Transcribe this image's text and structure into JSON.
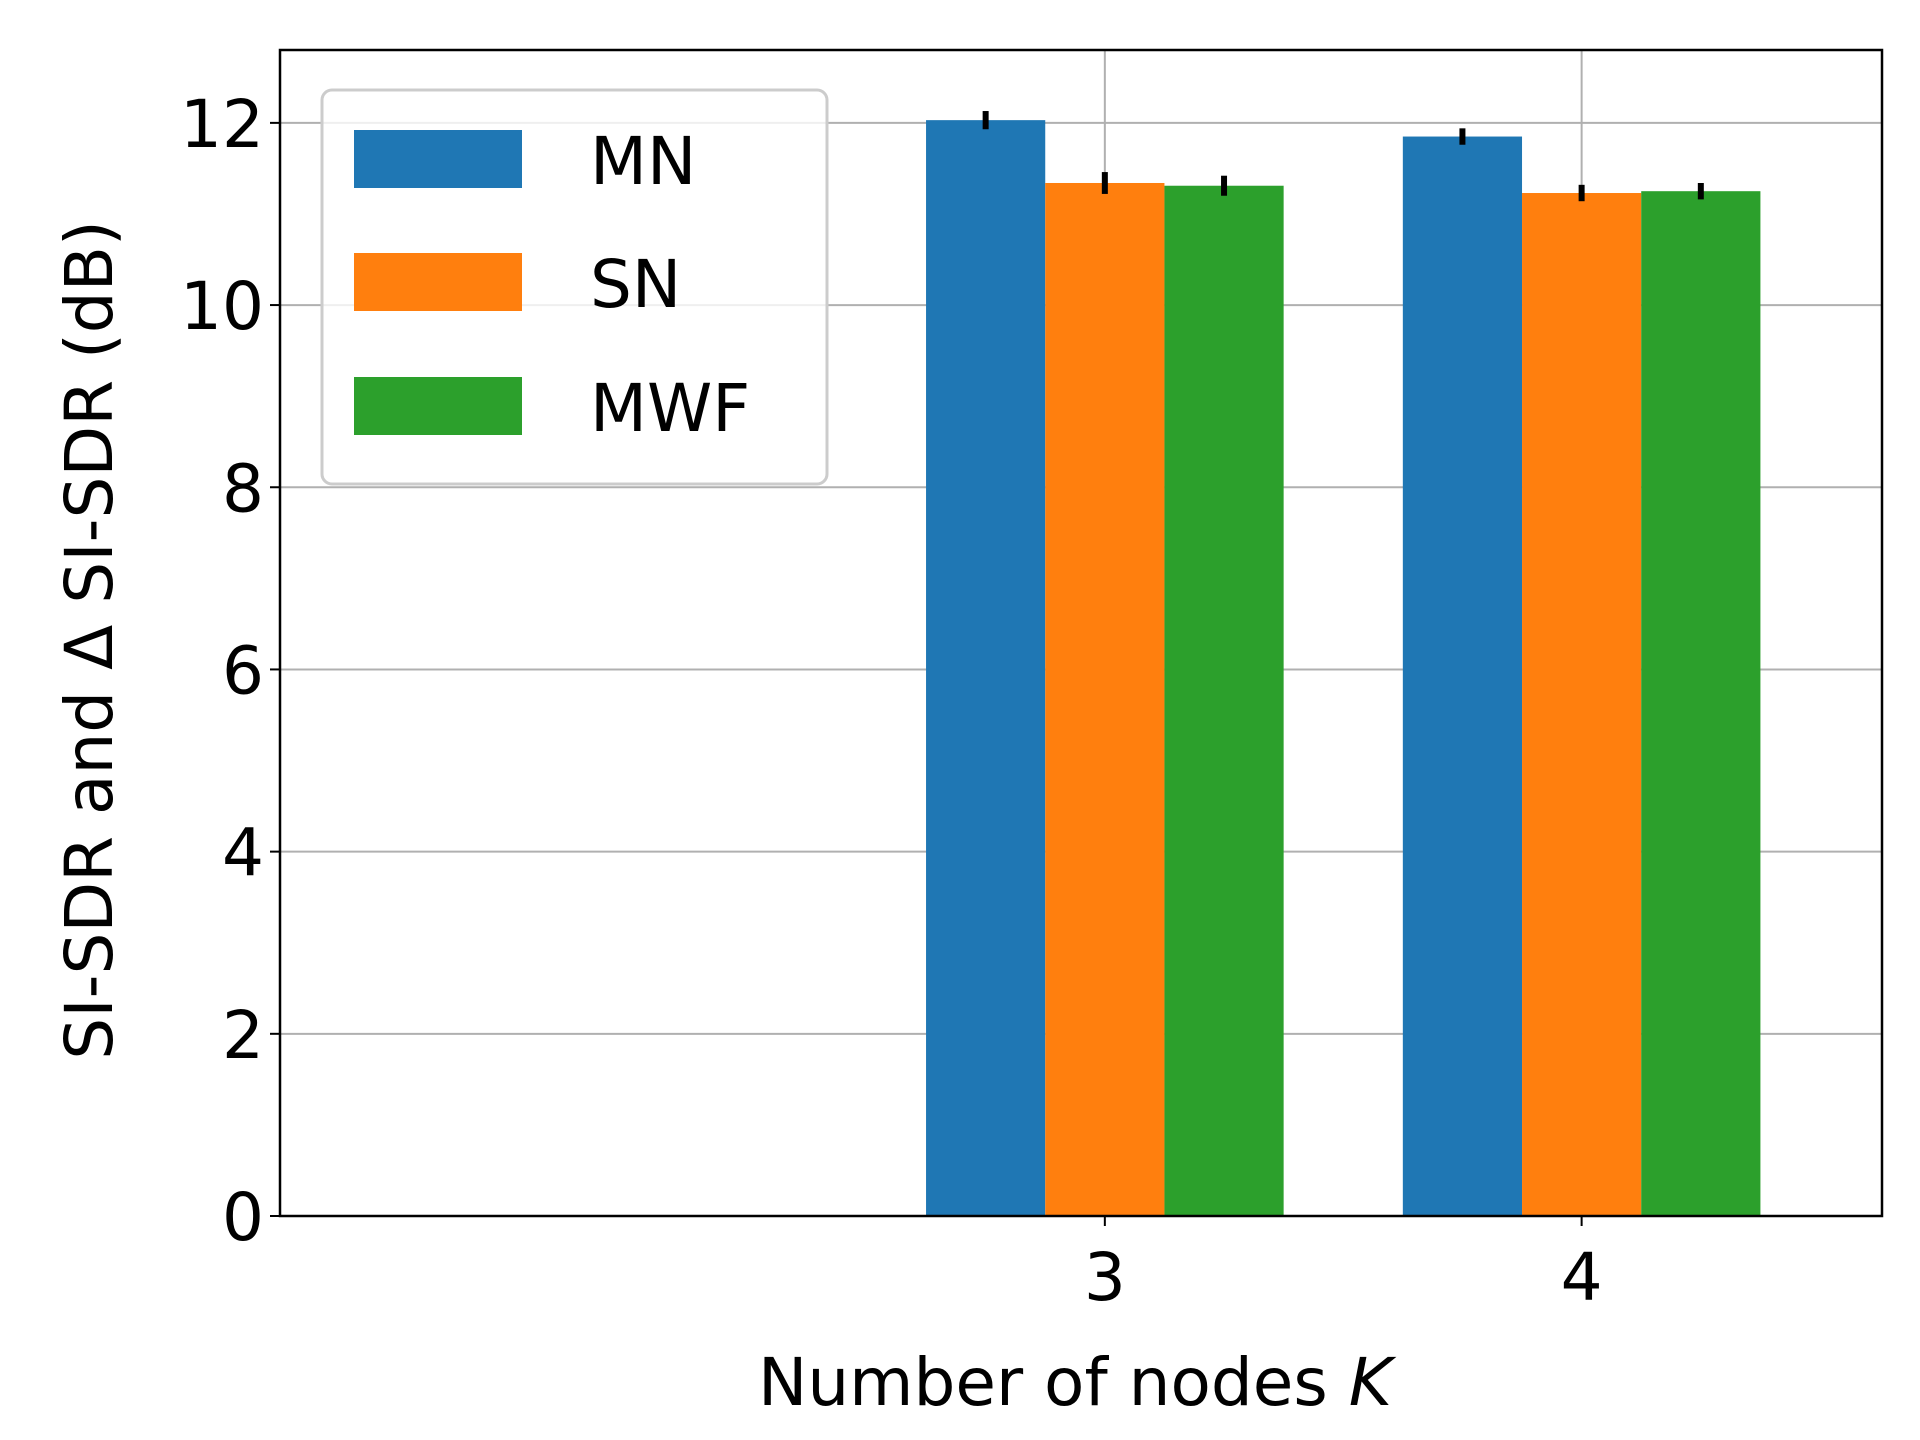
{
  "chart_data": {
    "type": "bar",
    "categories": [
      "3",
      "4"
    ],
    "x_positions": [
      3,
      4
    ],
    "xlim": [
      1.27,
      4.63
    ],
    "ylim": [
      0,
      12.8
    ],
    "yticks": [
      0,
      2,
      4,
      6,
      8,
      10,
      12
    ],
    "xlabel": "Number of nodes",
    "xlabel_var": "K",
    "ylabel": "SI-SDR and Δ SI-SDR (dB)",
    "grid": true,
    "legend_position": "top-left",
    "series": [
      {
        "name": "MN",
        "color": "#1f77b4",
        "values": [
          12.03,
          11.85
        ],
        "errors": [
          0.1,
          0.09
        ]
      },
      {
        "name": "SN",
        "color": "#ff7f0e",
        "values": [
          11.34,
          11.23
        ],
        "errors": [
          0.12,
          0.09
        ]
      },
      {
        "name": "MWF",
        "color": "#2ca02c",
        "values": [
          11.31,
          11.25
        ],
        "errors": [
          0.11,
          0.09
        ]
      }
    ]
  }
}
